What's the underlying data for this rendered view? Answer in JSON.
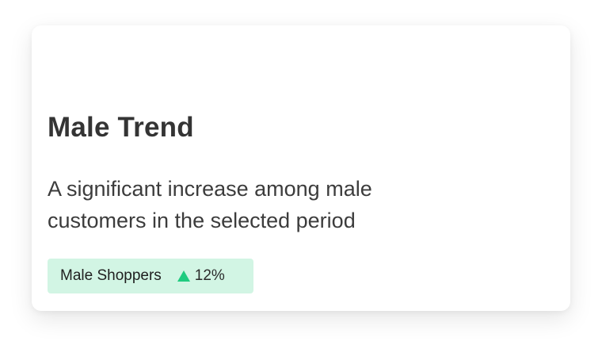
{
  "card": {
    "title": "Male Trend",
    "description": "A significant increase among male customers in the selected period",
    "badge": {
      "label": "Male Shoppers",
      "trend_direction": "up",
      "trend_icon": "triangle-up-icon",
      "trend_value": "12%",
      "background_color": "#d2f5e4",
      "trend_color": "#1fcb7f"
    }
  }
}
